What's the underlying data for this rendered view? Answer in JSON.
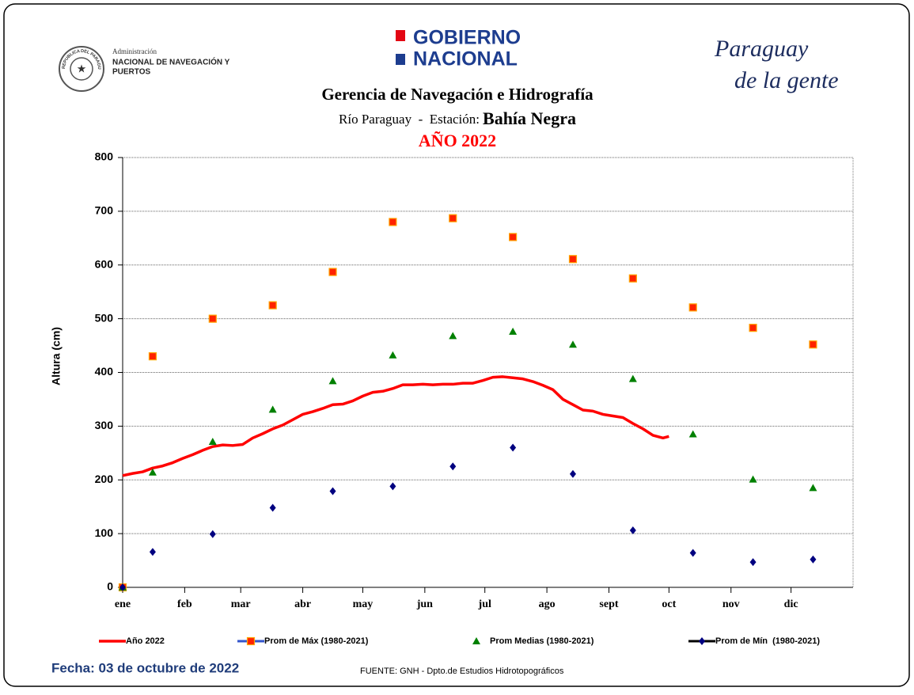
{
  "header": {
    "seal_text": "REPUBLICA DEL PARAGUAY",
    "agency": [
      "Administración",
      "NACIONAL DE NAVEGACIÓN Y",
      "PUERTOS"
    ],
    "government": [
      "GOBIERNO",
      "NACIONAL"
    ],
    "slogan": [
      "Paraguay",
      "de la gente"
    ]
  },
  "chart_data": {
    "type": "line",
    "title": "Gerencia de Navegación e Hidrografía",
    "subtitle": "Río Paraguay  -  Estación:",
    "station": "Bahía Negra",
    "year_label": "AÑO 2022",
    "y_label": "Altura (cm)",
    "xlim": [
      0,
      365
    ],
    "xticks": [
      {
        "value": 0,
        "label": "ene"
      },
      {
        "value": 31,
        "label": "feb"
      },
      {
        "value": 59,
        "label": "mar"
      },
      {
        "value": 90,
        "label": "abr"
      },
      {
        "value": 120,
        "label": "may"
      },
      {
        "value": 151,
        "label": "jun"
      },
      {
        "value": 181,
        "label": "jul"
      },
      {
        "value": 212,
        "label": "ago"
      },
      {
        "value": 243,
        "label": "sept"
      },
      {
        "value": 273,
        "label": "oct"
      },
      {
        "value": 304,
        "label": "nov"
      },
      {
        "value": 334,
        "label": "dic"
      }
    ],
    "ylim": [
      0,
      800
    ],
    "yticks": [
      0,
      100,
      200,
      300,
      400,
      500,
      600,
      700,
      800
    ],
    "grid": true,
    "series": [
      {
        "name": "Año 2022",
        "marker": "none",
        "color": "#ff0000",
        "x": [
          0,
          5,
          10,
          15,
          20,
          25,
          30,
          35,
          40,
          45,
          50,
          55,
          60,
          65,
          70,
          75,
          80,
          85,
          90,
          95,
          100,
          105,
          110,
          115,
          120,
          125,
          130,
          135,
          140,
          145,
          150,
          155,
          160,
          165,
          170,
          175,
          180,
          185,
          190,
          195,
          200,
          205,
          210,
          215,
          220,
          225,
          230,
          235,
          240,
          245,
          250,
          255,
          260,
          265,
          270,
          273
        ],
        "values": [
          208,
          212,
          215,
          222,
          226,
          232,
          240,
          247,
          255,
          262,
          265,
          264,
          266,
          278,
          286,
          295,
          302,
          312,
          322,
          327,
          333,
          340,
          341,
          347,
          356,
          363,
          365,
          370,
          377,
          377,
          378,
          377,
          378,
          378,
          380,
          380,
          385,
          391,
          392,
          390,
          388,
          383,
          376,
          368,
          350,
          340,
          330,
          328,
          322,
          319,
          316,
          305,
          295,
          283,
          278,
          281
        ]
      },
      {
        "name": "Prom de Máx (1980-2021)",
        "marker": "square",
        "color": "#ff2200",
        "legend_line_color": "#3355cc",
        "x": [
          0,
          15,
          45,
          75,
          105,
          135,
          165,
          195,
          225,
          255,
          285,
          315,
          345
        ],
        "values": [
          0,
          430,
          500,
          525,
          587,
          680,
          687,
          652,
          611,
          575,
          521,
          483,
          452
        ]
      },
      {
        "name": "Prom Medias (1980-2021)",
        "marker": "triangle",
        "color": "#008000",
        "x": [
          0,
          15,
          45,
          75,
          105,
          135,
          165,
          195,
          225,
          255,
          285,
          315,
          345
        ],
        "values": [
          0,
          214,
          271,
          331,
          384,
          432,
          468,
          476,
          452,
          388,
          285,
          201,
          185
        ]
      },
      {
        "name": "Prom de Mín  (1980-2021)",
        "marker": "diamond",
        "color": "#000080",
        "legend_line_color": "#000000",
        "x": [
          0,
          15,
          45,
          75,
          105,
          135,
          165,
          195,
          225,
          255,
          285,
          315,
          345
        ],
        "values": [
          0,
          66,
          99,
          148,
          179,
          188,
          225,
          260,
          211,
          106,
          64,
          47,
          52
        ]
      }
    ]
  },
  "footer": {
    "date": "Fecha: 03 de octubre de 2022",
    "source": "FUENTE: GNH - Dpto.de Estudios Hidrotopográficos"
  }
}
